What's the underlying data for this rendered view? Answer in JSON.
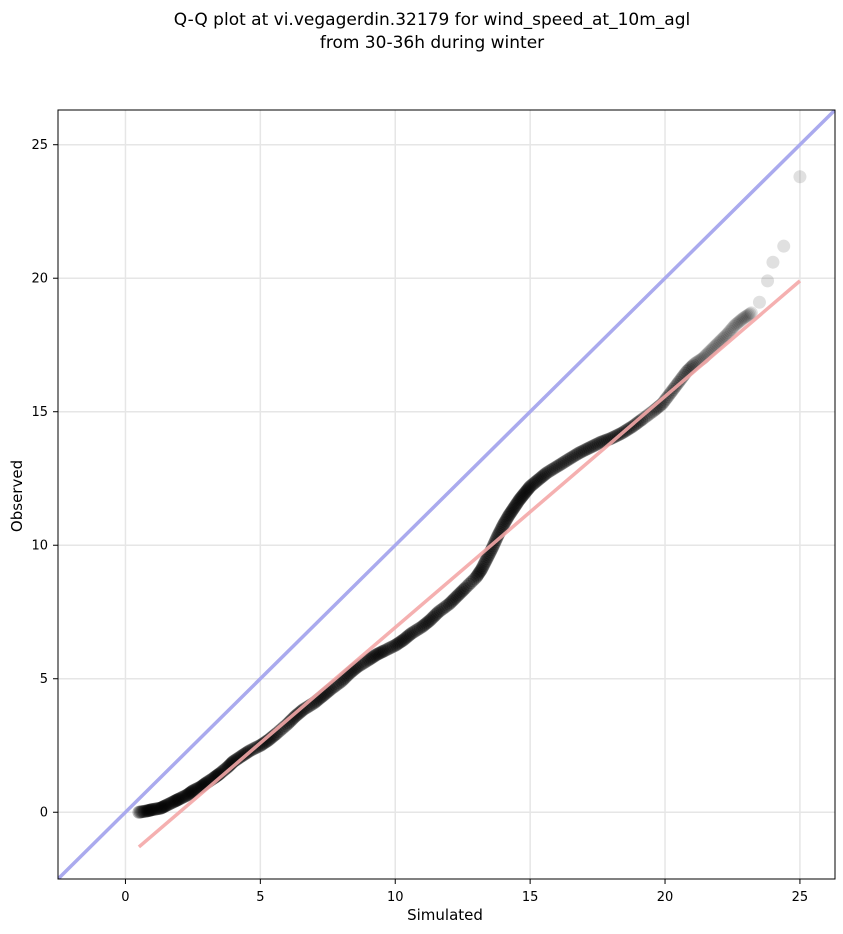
{
  "chart_data": {
    "type": "scatter",
    "title_line1": "Q-Q plot at vi.vegagerdin.32179 for wind_speed_at_10m_agl",
    "title_line2": "from 30-36h during winter",
    "xlabel": "Simulated",
    "ylabel": "Observed",
    "xlim": [
      -2.5,
      26.3
    ],
    "ylim": [
      -2.5,
      26.3
    ],
    "xticks": [
      0,
      5,
      10,
      15,
      20,
      25
    ],
    "yticks": [
      0,
      5,
      10,
      15,
      20,
      25
    ],
    "grid": true,
    "quantile_points": [
      [
        0.5,
        0.0
      ],
      [
        0.8,
        0.05
      ],
      [
        1.0,
        0.1
      ],
      [
        1.3,
        0.15
      ],
      [
        1.5,
        0.25
      ],
      [
        1.8,
        0.4
      ],
      [
        2.0,
        0.5
      ],
      [
        2.3,
        0.65
      ],
      [
        2.5,
        0.8
      ],
      [
        2.8,
        0.95
      ],
      [
        3.0,
        1.1
      ],
      [
        3.3,
        1.3
      ],
      [
        3.5,
        1.45
      ],
      [
        3.8,
        1.7
      ],
      [
        4.0,
        1.9
      ],
      [
        4.3,
        2.1
      ],
      [
        4.6,
        2.3
      ],
      [
        5.0,
        2.5
      ],
      [
        5.3,
        2.7
      ],
      [
        5.6,
        2.95
      ],
      [
        6.0,
        3.3
      ],
      [
        6.3,
        3.6
      ],
      [
        6.6,
        3.85
      ],
      [
        7.0,
        4.1
      ],
      [
        7.3,
        4.35
      ],
      [
        7.6,
        4.6
      ],
      [
        8.0,
        4.9
      ],
      [
        8.3,
        5.2
      ],
      [
        8.6,
        5.45
      ],
      [
        9.0,
        5.7
      ],
      [
        9.3,
        5.9
      ],
      [
        9.6,
        6.05
      ],
      [
        10.0,
        6.25
      ],
      [
        10.3,
        6.45
      ],
      [
        10.6,
        6.7
      ],
      [
        11.0,
        6.95
      ],
      [
        11.3,
        7.2
      ],
      [
        11.6,
        7.5
      ],
      [
        12.0,
        7.8
      ],
      [
        12.3,
        8.1
      ],
      [
        12.6,
        8.4
      ],
      [
        13.0,
        8.8
      ],
      [
        13.2,
        9.1
      ],
      [
        13.4,
        9.5
      ],
      [
        13.6,
        9.9
      ],
      [
        13.8,
        10.35
      ],
      [
        14.0,
        10.75
      ],
      [
        14.2,
        11.1
      ],
      [
        14.4,
        11.4
      ],
      [
        14.6,
        11.7
      ],
      [
        14.8,
        11.95
      ],
      [
        15.0,
        12.2
      ],
      [
        15.3,
        12.45
      ],
      [
        15.6,
        12.7
      ],
      [
        16.0,
        12.95
      ],
      [
        16.4,
        13.2
      ],
      [
        16.8,
        13.45
      ],
      [
        17.2,
        13.65
      ],
      [
        17.6,
        13.85
      ],
      [
        18.0,
        14.0
      ],
      [
        18.4,
        14.2
      ],
      [
        18.8,
        14.45
      ],
      [
        19.2,
        14.75
      ],
      [
        19.6,
        15.05
      ],
      [
        19.9,
        15.3
      ],
      [
        20.2,
        15.7
      ],
      [
        20.5,
        16.1
      ],
      [
        20.8,
        16.5
      ],
      [
        21.1,
        16.8
      ],
      [
        21.4,
        17.0
      ],
      [
        21.7,
        17.3
      ],
      [
        22.0,
        17.6
      ],
      [
        22.3,
        17.9
      ],
      [
        22.6,
        18.25
      ],
      [
        22.9,
        18.5
      ],
      [
        23.2,
        18.7
      ],
      [
        23.5,
        19.1
      ],
      [
        23.8,
        19.9
      ],
      [
        24.0,
        20.6
      ],
      [
        24.4,
        21.2
      ],
      [
        25.0,
        23.8
      ]
    ],
    "identity_line": [
      [
        -2.5,
        -2.5
      ],
      [
        26.3,
        26.3
      ]
    ],
    "fit_line": [
      [
        0.5,
        -1.3
      ],
      [
        25.0,
        19.9
      ]
    ],
    "colors": {
      "points": "#000000",
      "identity_line": "#aaaaee",
      "fit_line": "#f4a7a7",
      "grid": "#e6e6e6"
    }
  }
}
